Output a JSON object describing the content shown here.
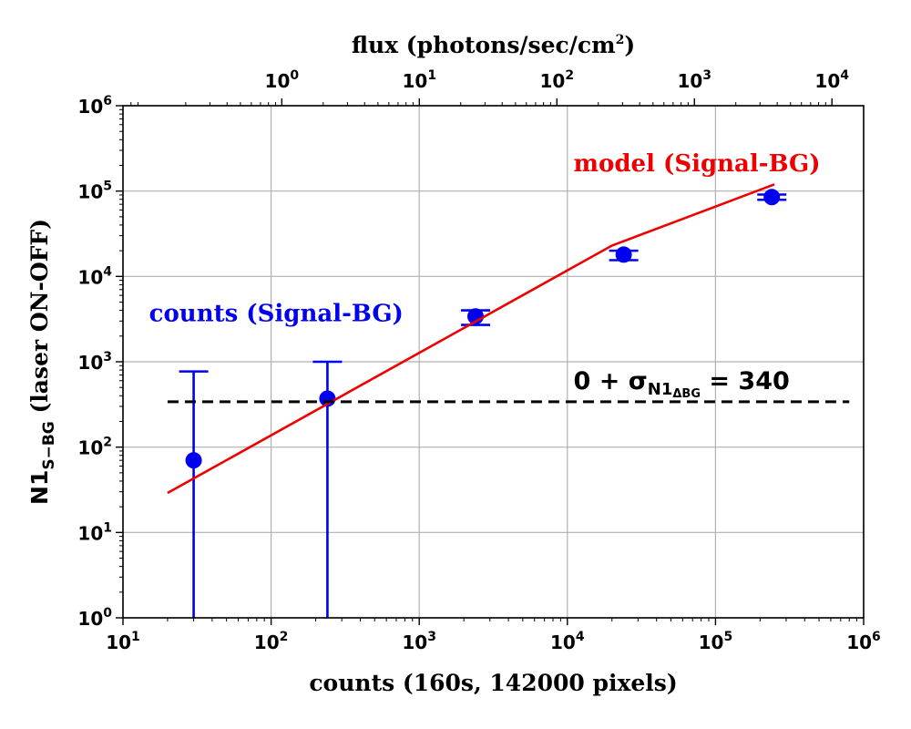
{
  "chart_data": {
    "type": "scatter",
    "xlabel": "counts (160s, 142000 pixels)",
    "top_xlabel": {
      "text": "flux (photons/sec/cm",
      "sup": "2",
      "close": ")"
    },
    "ylabel": {
      "main": "N1",
      "sub": "S−BG",
      "rest": " (laser ON-OFF)"
    },
    "x_scale": "log",
    "y_scale": "log",
    "xlim": [
      10,
      1000000
    ],
    "ylim": [
      1,
      1000000
    ],
    "top_xlim": [
      0.07,
      17000
    ],
    "grid": true,
    "x_ticks": [
      {
        "base": "10",
        "exp": "1",
        "value": 10
      },
      {
        "base": "10",
        "exp": "2",
        "value": 100
      },
      {
        "base": "10",
        "exp": "3",
        "value": 1000
      },
      {
        "base": "10",
        "exp": "4",
        "value": 10000
      },
      {
        "base": "10",
        "exp": "5",
        "value": 100000
      },
      {
        "base": "10",
        "exp": "6",
        "value": 1000000
      }
    ],
    "y_ticks": [
      {
        "base": "10",
        "exp": "0",
        "value": 1
      },
      {
        "base": "10",
        "exp": "1",
        "value": 10
      },
      {
        "base": "10",
        "exp": "2",
        "value": 100
      },
      {
        "base": "10",
        "exp": "3",
        "value": 1000
      },
      {
        "base": "10",
        "exp": "4",
        "value": 10000
      },
      {
        "base": "10",
        "exp": "5",
        "value": 100000
      },
      {
        "base": "10",
        "exp": "6",
        "value": 1000000
      }
    ],
    "y_bottom_tick_label": {
      "base": "10",
      "exp": "0"
    },
    "top_ticks": [
      {
        "base": "10",
        "exp": "0",
        "value": 1
      },
      {
        "base": "10",
        "exp": "1",
        "value": 10
      },
      {
        "base": "10",
        "exp": "2",
        "value": 100
      },
      {
        "base": "10",
        "exp": "3",
        "value": 1000
      },
      {
        "base": "10",
        "exp": "4",
        "value": 10000
      }
    ],
    "series": [
      {
        "name": "counts (Signal-BG)",
        "type": "errorbar",
        "color": "#0000ee",
        "x": [
          30,
          240,
          2400,
          24000,
          240000
        ],
        "y": [
          70,
          370,
          3400,
          18000,
          85000
        ],
        "yerr_low": [
          69.99,
          369.99,
          700,
          2500,
          6000
        ],
        "yerr_high": [
          700,
          630,
          600,
          2000,
          6000
        ],
        "capped_low": [
          false,
          false,
          true,
          true,
          true
        ]
      },
      {
        "name": "model (Signal-BG)",
        "type": "line",
        "color": "#ee0000",
        "x": [
          20,
          20000,
          250000
        ],
        "y": [
          29,
          23000,
          120000
        ]
      },
      {
        "name": "threshold",
        "type": "hline",
        "color": "#000000",
        "dash": true,
        "y": 340,
        "x_range": [
          20,
          800000
        ]
      }
    ],
    "annotations": [
      {
        "id": "model-label",
        "text": "model (Signal-BG)",
        "color": "#ee0000",
        "x": 11000,
        "y": 170000
      },
      {
        "id": "counts-label",
        "text": "counts (Signal-BG)",
        "color": "#0000ee",
        "x": 15,
        "y": 3000
      },
      {
        "id": "threshold-label",
        "prefix": "0 + σ",
        "sub": "N1",
        "subsub": "ΔBG",
        "suffix": " = 340",
        "x": 11000,
        "y": 480
      }
    ]
  }
}
